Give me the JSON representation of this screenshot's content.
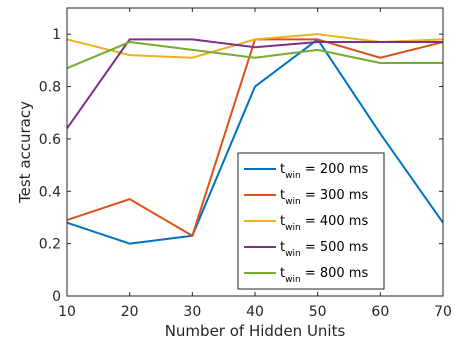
{
  "chart_data": {
    "type": "line",
    "xlabel": "Number of Hidden Units",
    "ylabel": "Test accuracy",
    "xlim": [
      10,
      70
    ],
    "ylim": [
      0,
      1.1
    ],
    "xticks": [
      "10",
      "20",
      "30",
      "40",
      "50",
      "60",
      "70"
    ],
    "yticks": [
      "0",
      "0.2",
      "0.4",
      "0.6",
      "0.8",
      "1"
    ],
    "grid": false,
    "legend_position": "bottom-right",
    "x": [
      10,
      20,
      30,
      40,
      50,
      60,
      70
    ],
    "series": [
      {
        "name_main": "t",
        "name_sub": "win",
        "name_rest": " = 200 ms",
        "color": "#0072BD",
        "values": [
          0.28,
          0.2,
          0.23,
          0.8,
          0.98,
          0.62,
          0.28
        ]
      },
      {
        "name_main": "t",
        "name_sub": "win",
        "name_rest": " = 300 ms",
        "color": "#D95319",
        "values": [
          0.29,
          0.37,
          0.23,
          0.98,
          0.98,
          0.91,
          0.97
        ]
      },
      {
        "name_main": "t",
        "name_sub": "win",
        "name_rest": " = 400 ms",
        "color": "#EDB120",
        "values": [
          0.98,
          0.92,
          0.91,
          0.98,
          1.0,
          0.97,
          0.98
        ]
      },
      {
        "name_main": "t",
        "name_sub": "win",
        "name_rest": " = 500 ms",
        "color": "#7E2F8E",
        "values": [
          0.64,
          0.98,
          0.98,
          0.95,
          0.97,
          0.97,
          0.97
        ]
      },
      {
        "name_main": "t",
        "name_sub": "win",
        "name_rest": " = 800 ms",
        "color": "#77AC30",
        "values": [
          0.87,
          0.97,
          0.94,
          0.91,
          0.94,
          0.89,
          0.89
        ]
      }
    ]
  }
}
